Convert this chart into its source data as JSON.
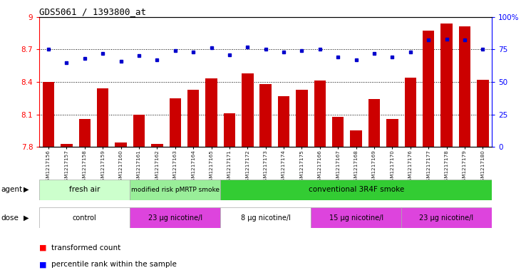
{
  "title": "GDS5061 / 1393800_at",
  "samples": [
    "GSM1217156",
    "GSM1217157",
    "GSM1217158",
    "GSM1217159",
    "GSM1217160",
    "GSM1217161",
    "GSM1217162",
    "GSM1217163",
    "GSM1217164",
    "GSM1217165",
    "GSM1217171",
    "GSM1217172",
    "GSM1217173",
    "GSM1217174",
    "GSM1217175",
    "GSM1217166",
    "GSM1217167",
    "GSM1217168",
    "GSM1217169",
    "GSM1217170",
    "GSM1217176",
    "GSM1217177",
    "GSM1217178",
    "GSM1217179",
    "GSM1217180"
  ],
  "bar_values": [
    8.4,
    7.83,
    8.06,
    8.34,
    7.84,
    8.1,
    7.83,
    8.25,
    8.33,
    8.43,
    8.11,
    8.48,
    8.38,
    8.27,
    8.33,
    8.41,
    8.08,
    7.95,
    8.24,
    8.06,
    8.44,
    8.87,
    8.94,
    8.91,
    8.42
  ],
  "dot_values": [
    75,
    65,
    68,
    72,
    66,
    70,
    67,
    74,
    73,
    76,
    71,
    77,
    75,
    73,
    74,
    75,
    69,
    67,
    72,
    69,
    73,
    82,
    83,
    82,
    75
  ],
  "ymin": 7.8,
  "ymax": 9.0,
  "yticks": [
    7.8,
    8.1,
    8.4,
    8.7,
    9.0
  ],
  "ytick_labels": [
    "7.8",
    "8.1",
    "8.4",
    "8.7",
    "9"
  ],
  "y2min": 0,
  "y2max": 100,
  "y2ticks": [
    0,
    25,
    50,
    75,
    100
  ],
  "y2tick_labels": [
    "0",
    "25",
    "50",
    "75",
    "100%"
  ],
  "bar_color": "#cc0000",
  "dot_color": "#0000cc",
  "agent_groups": [
    {
      "label": "fresh air",
      "start": 0,
      "end": 5,
      "color": "#ccffcc"
    },
    {
      "label": "modified risk pMRTP smoke",
      "start": 5,
      "end": 10,
      "color": "#99ee99"
    },
    {
      "label": "conventional 3R4F smoke",
      "start": 10,
      "end": 25,
      "color": "#33cc33"
    }
  ],
  "dose_groups": [
    {
      "label": "control",
      "start": 0,
      "end": 5,
      "color": "#ffffff"
    },
    {
      "label": "23 μg nicotine/l",
      "start": 5,
      "end": 10,
      "color": "#dd44dd"
    },
    {
      "label": "8 μg nicotine/l",
      "start": 10,
      "end": 15,
      "color": "#ffffff"
    },
    {
      "label": "15 μg nicotine/l",
      "start": 15,
      "end": 20,
      "color": "#dd44dd"
    },
    {
      "label": "23 μg nicotine/l",
      "start": 20,
      "end": 25,
      "color": "#dd44dd"
    }
  ]
}
